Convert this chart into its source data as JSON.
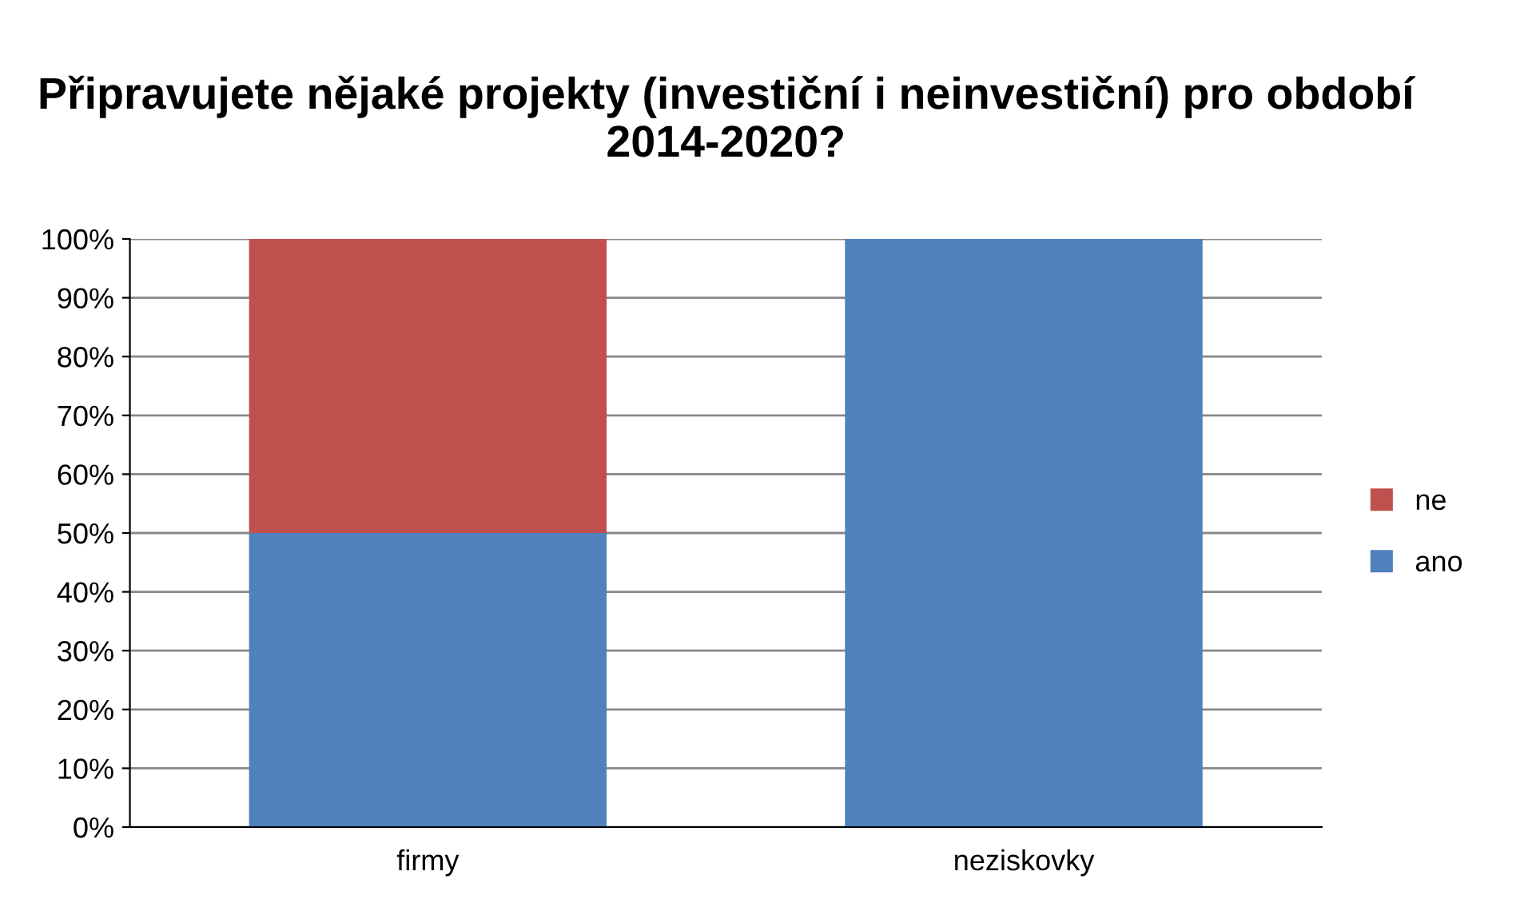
{
  "chart_data": {
    "type": "bar",
    "stacked": true,
    "title": "Připravujete nějaké projekty (investiční i neinvestiční) pro období 2014-2020?",
    "categories": [
      "firmy",
      "neziskovky"
    ],
    "series": [
      {
        "name": "ano",
        "color": "#4f81bd",
        "values": [
          50,
          100
        ]
      },
      {
        "name": "ne",
        "color": "#c0504d",
        "values": [
          50,
          0
        ]
      }
    ],
    "ylim": [
      0,
      100
    ],
    "yticks": [
      {
        "value": 0,
        "label": "0%"
      },
      {
        "value": 10,
        "label": "10%"
      },
      {
        "value": 20,
        "label": "20%"
      },
      {
        "value": 30,
        "label": "30%"
      },
      {
        "value": 40,
        "label": "40%"
      },
      {
        "value": 50,
        "label": "50%"
      },
      {
        "value": 60,
        "label": "60%"
      },
      {
        "value": 70,
        "label": "70%"
      },
      {
        "value": 80,
        "label": "80%"
      },
      {
        "value": 90,
        "label": "90%"
      },
      {
        "value": 100,
        "label": "100%"
      }
    ],
    "grid": "y",
    "legend": "right"
  }
}
